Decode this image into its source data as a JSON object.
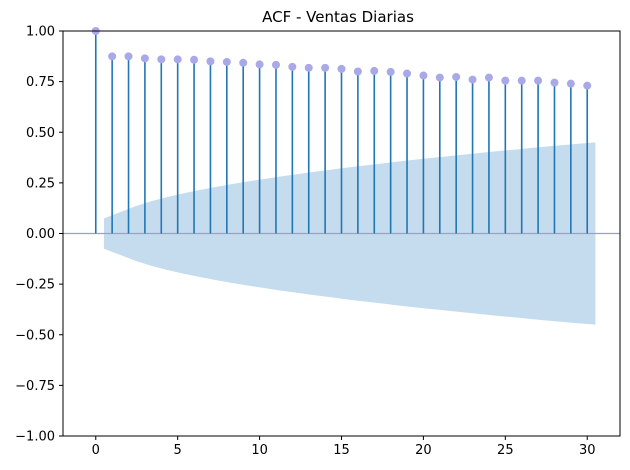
{
  "chart_data": {
    "type": "stem",
    "title": "ACF - Ventas Diarias",
    "xlabel": "",
    "ylabel": "",
    "xlim": [
      -2,
      32
    ],
    "ylim": [
      -1.0,
      1.0
    ],
    "x_ticks": [
      0,
      5,
      10,
      15,
      20,
      25,
      30
    ],
    "x_tick_labels": [
      "0",
      "5",
      "10",
      "15",
      "20",
      "25",
      "30"
    ],
    "y_ticks": [
      -1.0,
      -0.75,
      -0.5,
      -0.25,
      0.0,
      0.25,
      0.5,
      0.75,
      1.0
    ],
    "y_tick_labels": [
      "−1.00",
      "−0.75",
      "−0.50",
      "−0.25",
      "0.00",
      "0.25",
      "0.50",
      "0.75",
      "1.00"
    ],
    "grid": false,
    "lags": [
      0,
      1,
      2,
      3,
      4,
      5,
      6,
      7,
      8,
      9,
      10,
      11,
      12,
      13,
      14,
      15,
      16,
      17,
      18,
      19,
      20,
      21,
      22,
      23,
      24,
      25,
      26,
      27,
      28,
      29,
      30
    ],
    "acf": [
      1.0,
      0.875,
      0.875,
      0.865,
      0.86,
      0.86,
      0.858,
      0.85,
      0.847,
      0.843,
      0.835,
      0.833,
      0.823,
      0.818,
      0.818,
      0.813,
      0.8,
      0.803,
      0.798,
      0.79,
      0.78,
      0.77,
      0.773,
      0.76,
      0.77,
      0.755,
      0.755,
      0.755,
      0.745,
      0.74,
      0.73
    ],
    "confidence_band": {
      "x_start": 0.5,
      "x_end": 30.5,
      "bounds": [
        0.075,
        0.105,
        0.135,
        0.16,
        0.18,
        0.198,
        0.214,
        0.229,
        0.243,
        0.256,
        0.268,
        0.28,
        0.291,
        0.302,
        0.312,
        0.322,
        0.332,
        0.341,
        0.35,
        0.359,
        0.368,
        0.376,
        0.384,
        0.392,
        0.4,
        0.408,
        0.415,
        0.423,
        0.43,
        0.437,
        0.444,
        0.45
      ]
    },
    "colors": {
      "stem": "#1f77b4",
      "marker": "#a9a9e9",
      "zero_line": "#9a9ae6",
      "band": "#c5dcee",
      "axis": "#000000"
    }
  }
}
